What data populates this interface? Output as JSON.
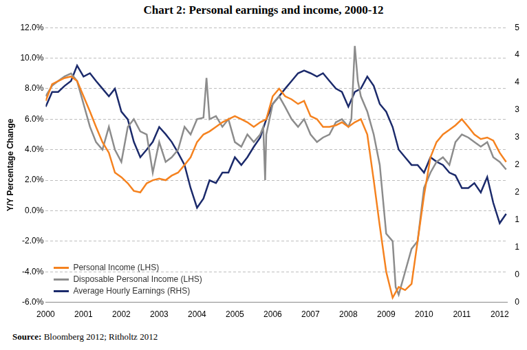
{
  "chart_data": {
    "type": "line",
    "title": "Chart 2: Personal earnings and income, 2000-12",
    "source": "Source: Bloomberg 2012; Ritholtz 2012",
    "y_label": "Y/Y Percentage Change",
    "xlim": [
      2000,
      2012.2
    ],
    "xticks": [
      2000,
      2001,
      2002,
      2003,
      2004,
      2005,
      2006,
      2007,
      2008,
      2009,
      2010,
      2011,
      2012
    ],
    "ylim": [
      -6,
      12
    ],
    "yticks": [
      {
        "value": -6,
        "label": "-6.0%"
      },
      {
        "value": -4,
        "label": "-4.0%"
      },
      {
        "value": -2,
        "label": "-2.0%"
      },
      {
        "value": 0,
        "label": "0.0%"
      },
      {
        "value": 2,
        "label": "2.0%"
      },
      {
        "value": 4,
        "label": "4.0%"
      },
      {
        "value": 6,
        "label": "6.0%"
      },
      {
        "value": 8,
        "label": "8.0%"
      },
      {
        "value": 10,
        "label": "10.0%"
      },
      {
        "value": 12,
        "label": "12.0%"
      }
    ],
    "y2lim": [
      0,
      5
    ],
    "y2ticks": [
      0,
      {
        "value": 0.5,
        "label": "0"
      },
      1,
      {
        "value": 1.5,
        "label": "1"
      },
      2,
      {
        "value": 2.5,
        "label": "2"
      },
      3,
      {
        "value": 3.5,
        "label": "3"
      },
      4,
      {
        "value": 4.5,
        "label": "4"
      },
      5
    ],
    "grid": true,
    "legend": "lower left",
    "series": [
      {
        "name": "Personal Income (LHS)",
        "color": "#f5821f",
        "axis": "y",
        "x": [
          2000,
          2000.17,
          2000.33,
          2000.5,
          2000.67,
          2000.83,
          2001,
          2001.17,
          2001.33,
          2001.5,
          2001.67,
          2001.83,
          2002,
          2002.17,
          2002.33,
          2002.5,
          2002.67,
          2002.83,
          2003,
          2003.17,
          2003.33,
          2003.5,
          2003.67,
          2003.83,
          2004,
          2004.17,
          2004.33,
          2004.5,
          2004.67,
          2004.83,
          2005,
          2005.17,
          2005.33,
          2005.5,
          2005.67,
          2005.83,
          2006,
          2006.17,
          2006.33,
          2006.5,
          2006.67,
          2006.83,
          2007,
          2007.17,
          2007.33,
          2007.5,
          2007.67,
          2007.83,
          2008,
          2008.17,
          2008.33,
          2008.5,
          2008.67,
          2008.83,
          2009,
          2009.17,
          2009.33,
          2009.5,
          2009.67,
          2009.83,
          2010,
          2010.17,
          2010.33,
          2010.5,
          2010.67,
          2010.83,
          2011,
          2011.17,
          2011.33,
          2011.5,
          2011.67,
          2011.83,
          2012,
          2012.17
        ],
        "values": [
          7.2,
          8.3,
          8.5,
          8.7,
          8.8,
          8.5,
          7.5,
          6.5,
          5.5,
          4.5,
          3.8,
          2.5,
          2.2,
          1.8,
          1.3,
          1.2,
          1.8,
          2.0,
          2.1,
          2.0,
          2.3,
          2.5,
          3.0,
          3.5,
          4.5,
          5.0,
          5.2,
          5.5,
          5.8,
          6.0,
          6.2,
          6.0,
          5.8,
          5.5,
          5.8,
          6.0,
          7.5,
          8.0,
          7.5,
          7.3,
          7.0,
          7.2,
          6.2,
          6.0,
          5.5,
          5.5,
          5.6,
          5.8,
          5.5,
          5.8,
          6.0,
          5.0,
          2.0,
          -1.0,
          -4.0,
          -5.7,
          -5.0,
          -5.2,
          -4.8,
          -2.0,
          1.0,
          3.5,
          4.5,
          5.0,
          5.3,
          5.6,
          6.0,
          5.5,
          5.0,
          4.7,
          4.8,
          4.6,
          3.8,
          3.2
        ]
      },
      {
        "name": "Disposable Personal Income (LHS)",
        "color": "#8c8c8c",
        "axis": "y",
        "x": [
          2000,
          2000.17,
          2000.33,
          2000.5,
          2000.67,
          2000.83,
          2001,
          2001.17,
          2001.33,
          2001.5,
          2001.67,
          2001.83,
          2002,
          2002.17,
          2002.33,
          2002.5,
          2002.67,
          2002.83,
          2003,
          2003.17,
          2003.33,
          2003.5,
          2003.67,
          2003.83,
          2004,
          2004.17,
          2004.25,
          2004.33,
          2004.5,
          2004.67,
          2004.83,
          2005,
          2005.17,
          2005.33,
          2005.5,
          2005.67,
          2005.75,
          2005.8,
          2005.83,
          2006,
          2006.17,
          2006.33,
          2006.5,
          2006.67,
          2006.83,
          2007,
          2007.17,
          2007.33,
          2007.5,
          2007.67,
          2007.83,
          2008,
          2008.08,
          2008.17,
          2008.25,
          2008.33,
          2008.5,
          2008.67,
          2008.83,
          2009,
          2009.17,
          2009.25,
          2009.33,
          2009.5,
          2009.67,
          2009.83,
          2010,
          2010.17,
          2010.33,
          2010.5,
          2010.67,
          2010.83,
          2011,
          2011.17,
          2011.33,
          2011.5,
          2011.67,
          2011.83,
          2012,
          2012.17
        ],
        "values": [
          7.5,
          8.2,
          8.5,
          8.8,
          9.0,
          8.5,
          7.0,
          5.5,
          4.5,
          4.0,
          5.5,
          4.0,
          3.2,
          5.5,
          6.0,
          5.2,
          5.0,
          2.5,
          4.5,
          3.2,
          3.5,
          4.0,
          5.5,
          5.0,
          6.0,
          6.1,
          8.7,
          6.0,
          6.2,
          5.5,
          6.0,
          4.5,
          4.2,
          5.0,
          4.5,
          5.0,
          5.5,
          2.0,
          5.0,
          7.0,
          7.5,
          6.8,
          6.0,
          5.5,
          6.0,
          5.0,
          4.5,
          4.8,
          5.0,
          5.8,
          6.0,
          5.5,
          6.0,
          10.8,
          8.5,
          7.5,
          6.5,
          5.0,
          3.0,
          -1.5,
          -2.0,
          -5.0,
          -5.5,
          -4.0,
          -2.5,
          -2.0,
          1.5,
          2.5,
          3.2,
          3.5,
          3.0,
          4.5,
          5.0,
          4.8,
          4.5,
          4.2,
          4.5,
          3.5,
          3.2,
          2.7
        ]
      },
      {
        "name": "Average Hourly Earnings (RHS)",
        "color": "#1b2a6b",
        "axis": "y2",
        "x": [
          2000,
          2000.17,
          2000.33,
          2000.5,
          2000.67,
          2000.83,
          2001,
          2001.17,
          2001.33,
          2001.5,
          2001.67,
          2001.83,
          2002,
          2002.17,
          2002.33,
          2002.5,
          2002.67,
          2002.83,
          2003,
          2003.17,
          2003.33,
          2003.5,
          2003.67,
          2003.83,
          2004,
          2004.17,
          2004.33,
          2004.5,
          2004.67,
          2004.83,
          2005,
          2005.17,
          2005.33,
          2005.5,
          2005.67,
          2005.83,
          2006,
          2006.17,
          2006.33,
          2006.5,
          2006.67,
          2006.83,
          2007,
          2007.17,
          2007.33,
          2007.5,
          2007.67,
          2007.83,
          2008,
          2008.17,
          2008.33,
          2008.5,
          2008.67,
          2008.83,
          2009,
          2009.17,
          2009.33,
          2009.5,
          2009.67,
          2009.83,
          2010,
          2010.17,
          2010.33,
          2010.5,
          2010.67,
          2010.83,
          2011,
          2011.17,
          2011.33,
          2011.5,
          2011.67,
          2011.83,
          2012,
          2012.17
        ],
        "values": [
          3.56,
          3.83,
          3.83,
          3.94,
          4.03,
          4.31,
          4.11,
          4.17,
          4.03,
          3.89,
          3.75,
          3.89,
          3.47,
          3.33,
          2.92,
          2.64,
          2.78,
          2.92,
          3.19,
          3.06,
          2.92,
          2.72,
          2.5,
          2.08,
          1.72,
          1.89,
          2.22,
          2.17,
          2.36,
          2.36,
          2.64,
          2.5,
          2.64,
          2.83,
          3.0,
          3.33,
          3.61,
          3.75,
          3.89,
          4.03,
          4.17,
          4.22,
          4.17,
          4.11,
          4.17,
          4.03,
          3.89,
          3.83,
          3.56,
          3.83,
          3.89,
          4.11,
          3.94,
          3.61,
          3.47,
          3.19,
          2.78,
          2.64,
          2.5,
          2.5,
          2.36,
          2.64,
          2.56,
          2.5,
          2.36,
          2.31,
          2.08,
          2.08,
          2.17,
          2.0,
          2.28,
          1.81,
          1.44,
          1.61
        ]
      }
    ]
  }
}
